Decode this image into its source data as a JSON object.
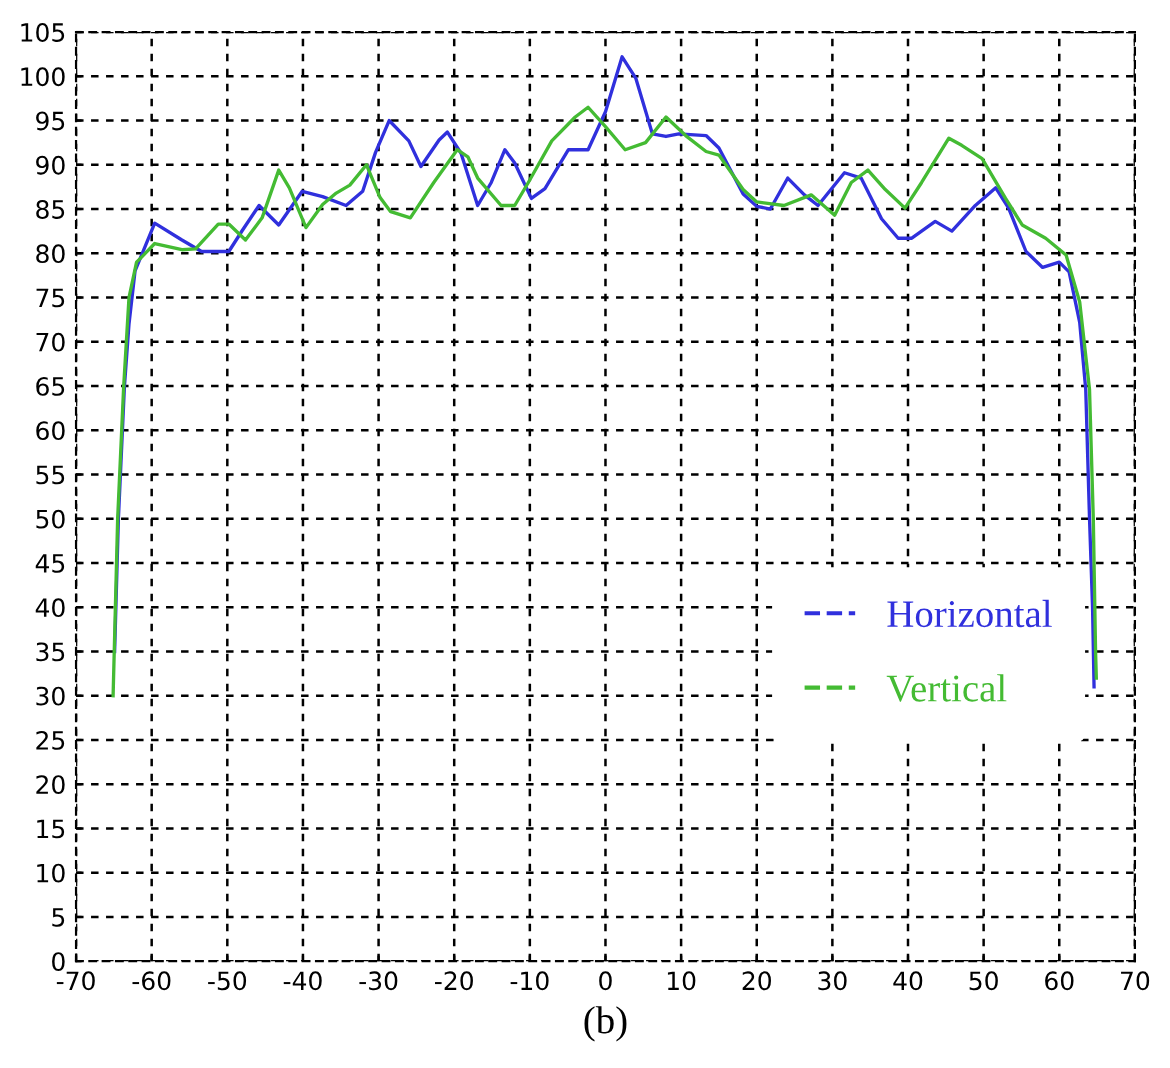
{
  "chart_data": {
    "type": "line",
    "xlabel": "(b)",
    "xlim": [
      -70,
      70
    ],
    "ylim": [
      0,
      105
    ],
    "xticks": [
      -70,
      -60,
      -50,
      -40,
      -30,
      -20,
      -10,
      0,
      10,
      20,
      30,
      40,
      50,
      60,
      70
    ],
    "yticks": [
      0,
      5,
      10,
      15,
      20,
      25,
      30,
      35,
      40,
      45,
      50,
      55,
      60,
      65,
      70,
      75,
      80,
      85,
      90,
      95,
      100,
      105
    ],
    "grid": true,
    "legend": "center right",
    "line_style": "solid",
    "series": [
      {
        "name": "Horizontal",
        "color": "#3030dd",
        "x": [
          -64.9,
          -64.4,
          -63.6,
          -63,
          -62.2,
          -59.6,
          -56,
          -53.4,
          -49.8,
          -48,
          -45.8,
          -43.2,
          -40.1,
          -37.4,
          -34.3,
          -32.1,
          -30.4,
          -28.6,
          -26,
          -24.4,
          -22,
          -20.9,
          -19.1,
          -16.9,
          -15.1,
          -13.3,
          -12,
          -9.8,
          -8,
          -4.9,
          -2.3,
          0,
          2.2,
          4,
          6.2,
          8,
          9.7,
          13.3,
          15,
          18.2,
          20,
          21.8,
          24.1,
          26.3,
          28.1,
          31.6,
          33.8,
          36.5,
          38.7,
          40.5,
          43.6,
          45.8,
          48.9,
          51.6,
          53.3,
          55.6,
          57.8,
          60,
          61.3,
          62.7,
          63.5,
          64,
          64.4,
          64.6
        ],
        "values": [
          35,
          50,
          65,
          72,
          78,
          83.4,
          81.5,
          80.2,
          80.2,
          82.6,
          85.4,
          83.2,
          87,
          86.4,
          85.4,
          87,
          91.4,
          95,
          92.7,
          89.8,
          92.8,
          93.7,
          91.3,
          85.4,
          88,
          91.7,
          90.2,
          86.2,
          87.3,
          91.7,
          91.7,
          96,
          102.2,
          99.8,
          93.5,
          93.2,
          93.5,
          93.3,
          91.9,
          86.7,
          85.3,
          85,
          88.5,
          86.6,
          85.4,
          89.1,
          88.5,
          83.9,
          81.7,
          81.7,
          83.6,
          82.5,
          85.4,
          87.4,
          85.1,
          80.2,
          78.4,
          79,
          77.9,
          72.2,
          64.6,
          50,
          40,
          31
        ]
      },
      {
        "name": "Vertical",
        "color": "#44bb33",
        "x": [
          -65.1,
          -64.5,
          -63.7,
          -63,
          -62,
          -61.3,
          -59.6,
          -56,
          -54.2,
          -51.2,
          -49.8,
          -47.6,
          -45.4,
          -43.2,
          -41.8,
          -39.6,
          -37.4,
          -35.6,
          -33.8,
          -31.6,
          -29.8,
          -28.4,
          -25.8,
          -22.7,
          -19.6,
          -18.2,
          -16.9,
          -13.8,
          -12,
          -10.2,
          -7.1,
          -4,
          -2.3,
          0,
          2.6,
          5.3,
          8,
          10.6,
          13.3,
          15,
          18.2,
          20,
          23.6,
          27.2,
          30.3,
          32.5,
          34.7,
          37,
          39.6,
          41.8,
          45.4,
          47.1,
          49.8,
          52.9,
          55.1,
          58.2,
          60.9,
          62.7,
          64,
          64.5,
          64.8,
          64.9
        ],
        "values": [
          30,
          50,
          65,
          75,
          79,
          79.6,
          81.1,
          80.4,
          80.5,
          83.3,
          83.3,
          81.5,
          84,
          89.4,
          87.4,
          82.9,
          85.5,
          86.8,
          87.7,
          90,
          86.3,
          84.7,
          84,
          88,
          91.7,
          90.9,
          88.5,
          85.4,
          85.4,
          88,
          92.7,
          95.4,
          96.5,
          94.3,
          91.7,
          92.5,
          95.4,
          93.3,
          91.5,
          91.1,
          87.2,
          85.8,
          85.4,
          86.6,
          84.3,
          88,
          89.4,
          87.2,
          85.1,
          88,
          93,
          92.2,
          90.7,
          86.2,
          83.2,
          81.7,
          79.8,
          74.5,
          64.6,
          50,
          35,
          32
        ]
      }
    ]
  }
}
